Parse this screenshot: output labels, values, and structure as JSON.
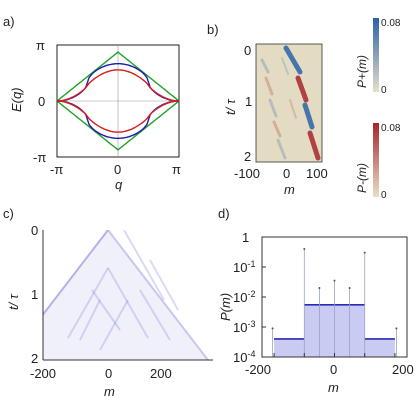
{
  "panels": {
    "a": {
      "label": "a)",
      "ylabel": "E(q)",
      "xlabel": "q",
      "yticks": [
        "π",
        "0",
        "-π"
      ],
      "xticks": [
        "-π",
        "0",
        "π"
      ]
    },
    "b": {
      "label": "b)",
      "ylabel": "t/ τ",
      "xlabel": "m",
      "yticks": [
        "0",
        "1",
        "2"
      ],
      "xticks": [
        "-100",
        "0",
        "100"
      ],
      "cbar_plus": {
        "label": "P+(m)",
        "max": "0.08",
        "min": "0",
        "color": "#2a62a8"
      },
      "cbar_minus": {
        "label": "P-(m)",
        "max": "0.08",
        "min": "0",
        "color": "#a8242c"
      }
    },
    "c": {
      "label": "c)",
      "ylabel": "t/ τ",
      "xlabel": "m",
      "yticks": [
        "0",
        "1",
        "2"
      ],
      "xticks": [
        "-200",
        "0",
        "200"
      ]
    },
    "d": {
      "label": "d)",
      "ylabel": "P(m)",
      "xlabel": "m",
      "yticks": [
        "1",
        "10-1",
        "10-2",
        "10-3",
        "10-4"
      ],
      "xticks": [
        "-200",
        "-100",
        "0",
        "100",
        "200"
      ]
    }
  },
  "chart_data": [
    {
      "type": "line",
      "panel": "a",
      "xlim": [
        -3.1416,
        3.1416
      ],
      "ylim": [
        -3.6,
        3.6
      ],
      "series": [
        {
          "color": "#22a02a",
          "kind": "triangle",
          "x": [
            -3.1416,
            0,
            3.1416
          ],
          "y": [
            0,
            3.1416,
            0
          ],
          "mirror": true
        },
        {
          "color": "#1c1cb0",
          "kind": "band",
          "amplitude": 2.4,
          "flatness": 0.55
        },
        {
          "color": "#d81c1c",
          "kind": "band",
          "amplitude": 2.0,
          "flatness": 0.8
        }
      ]
    },
    {
      "type": "heatmap",
      "panel": "b",
      "xlim": [
        -120,
        110
      ],
      "ylim": [
        0,
        2.05
      ]
    },
    {
      "type": "heatmap",
      "panel": "c",
      "xlim": [
        -240,
        240
      ],
      "ylim": [
        0,
        2.05
      ]
    },
    {
      "type": "bar",
      "panel": "d",
      "xlim": [
        -240,
        240
      ],
      "yscale": "log",
      "ylim_exp": [
        -4,
        0
      ],
      "levels": [
        {
          "x": [
            -200,
            -100
          ],
          "value": 0.0004
        },
        {
          "x": [
            -100,
            100
          ],
          "value": 0.0055
        },
        {
          "x": [
            100,
            200
          ],
          "value": 0.0004
        }
      ],
      "spikes": [
        {
          "x": -205,
          "value": 0.0009
        },
        {
          "x": -100,
          "value": 0.4
        },
        {
          "x": -50,
          "value": 0.02
        },
        {
          "x": 0,
          "value": 0.035
        },
        {
          "x": 50,
          "value": 0.02
        },
        {
          "x": 100,
          "value": 0.3
        },
        {
          "x": 205,
          "value": 0.0009
        }
      ]
    }
  ]
}
